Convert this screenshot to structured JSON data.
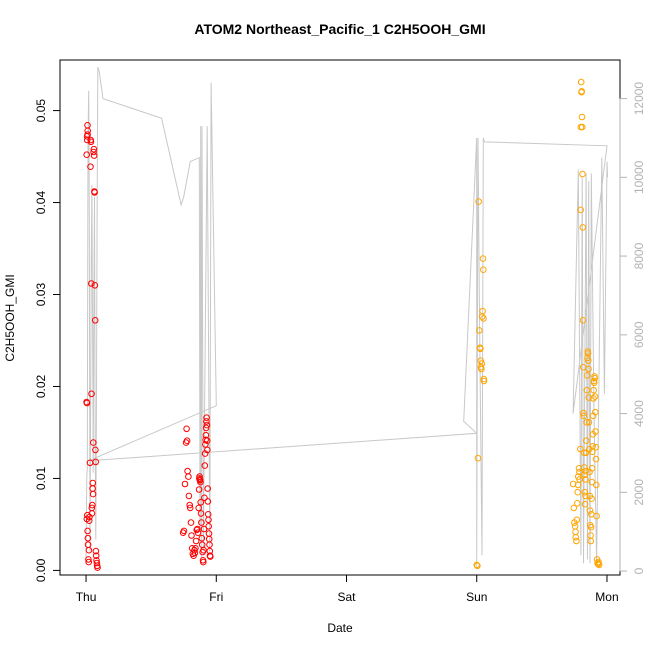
{
  "chart_data": {
    "type": "scatter",
    "title": "ATOM2 Northeast_Pacific_1 C2H5OOH_GMI",
    "xlabel": "Date",
    "ylabel": "C2H5OOH_GMI",
    "x_ticks": [
      {
        "day": 0,
        "label": "Thu"
      },
      {
        "day": 1,
        "label": "Fri"
      },
      {
        "day": 2,
        "label": "Sat"
      },
      {
        "day": 3,
        "label": "Sun"
      },
      {
        "day": 4,
        "label": "Mon"
      }
    ],
    "xlim": [
      -0.2,
      4.1
    ],
    "ylim": [
      -0.0005,
      0.0555
    ],
    "y_ticks": [
      0.0,
      0.01,
      0.02,
      0.03,
      0.04,
      0.05
    ],
    "y_tick_labels": [
      "0.00",
      "0.01",
      "0.02",
      "0.03",
      "0.04",
      "0.05"
    ],
    "y2lim": [
      -100,
      12980
    ],
    "y2_ticks": [
      0,
      2000,
      4000,
      6000,
      8000,
      10000,
      12000
    ],
    "y2_tick_labels": [
      "0",
      "2000",
      "4000",
      "6000",
      "8000",
      "10000",
      "12000"
    ],
    "grid": false,
    "colors": {
      "series_red": "#ff0000",
      "series_orange": "#ffa500",
      "altitude_line": "#c8c8c8"
    },
    "series": [
      {
        "color": "#ff0000",
        "points": [
          [
            0.005,
            0.0452
          ],
          [
            0.008,
            0.0472
          ],
          [
            0.011,
            0.0484
          ],
          [
            0.013,
            0.0478
          ],
          [
            0.009,
            0.0468
          ],
          [
            0.012,
            0.0474
          ],
          [
            0.004,
            0.0183
          ],
          [
            0.007,
            0.0182
          ],
          [
            0.006,
            0.0056
          ],
          [
            0.01,
            0.006
          ],
          [
            0.012,
            0.0043
          ],
          [
            0.014,
            0.0035
          ],
          [
            0.016,
            0.0028
          ],
          [
            0.018,
            0.0012
          ],
          [
            0.02,
            0.0009
          ],
          [
            0.022,
            0.0022
          ],
          [
            0.024,
            0.0054
          ],
          [
            0.026,
            0.0058
          ],
          [
            0.03,
            0.0117
          ],
          [
            0.034,
            0.0439
          ],
          [
            0.036,
            0.0468
          ],
          [
            0.038,
            0.0466
          ],
          [
            0.04,
            0.0312
          ],
          [
            0.042,
            0.0192
          ],
          [
            0.044,
            0.0068
          ],
          [
            0.046,
            0.0062
          ],
          [
            0.048,
            0.0071
          ],
          [
            0.05,
            0.0089
          ],
          [
            0.052,
            0.0095
          ],
          [
            0.054,
            0.0083
          ],
          [
            0.056,
            0.0139
          ],
          [
            0.058,
            0.0455
          ],
          [
            0.06,
            0.0458
          ],
          [
            0.062,
            0.0451
          ],
          [
            0.064,
            0.0412
          ],
          [
            0.066,
            0.0411
          ],
          [
            0.068,
            0.031
          ],
          [
            0.07,
            0.0272
          ],
          [
            0.072,
            0.0131
          ],
          [
            0.074,
            0.0118
          ],
          [
            0.076,
            0.0021
          ],
          [
            0.078,
            0.0016
          ],
          [
            0.08,
            0.0011
          ],
          [
            0.083,
            0.0008
          ],
          [
            0.086,
            0.0005
          ],
          [
            0.088,
            0.0003
          ],
          [
            0.745,
            0.0041
          ],
          [
            0.752,
            0.0043
          ],
          [
            0.76,
            0.0094
          ],
          [
            0.768,
            0.0139
          ],
          [
            0.772,
            0.0154
          ],
          [
            0.776,
            0.0141
          ],
          [
            0.78,
            0.0108
          ],
          [
            0.786,
            0.0102
          ],
          [
            0.79,
            0.0081
          ],
          [
            0.796,
            0.0071
          ],
          [
            0.8,
            0.0068
          ],
          [
            0.806,
            0.0052
          ],
          [
            0.81,
            0.0038
          ],
          [
            0.815,
            0.0024
          ],
          [
            0.82,
            0.0018
          ],
          [
            0.826,
            0.0016
          ],
          [
            0.832,
            0.0022
          ],
          [
            0.836,
            0.0019
          ],
          [
            0.84,
            0.0024
          ],
          [
            0.845,
            0.0032
          ],
          [
            0.85,
            0.0044
          ],
          [
            0.855,
            0.0045
          ],
          [
            0.86,
            0.0041
          ],
          [
            0.865,
            0.0068
          ],
          [
            0.868,
            0.0088
          ],
          [
            0.87,
            0.01
          ],
          [
            0.872,
            0.0102
          ],
          [
            0.874,
            0.0098
          ],
          [
            0.876,
            0.0099
          ],
          [
            0.878,
            0.0096
          ],
          [
            0.88,
            0.0074
          ],
          [
            0.883,
            0.0062
          ],
          [
            0.886,
            0.0052
          ],
          [
            0.889,
            0.0035
          ],
          [
            0.892,
            0.0028
          ],
          [
            0.895,
            0.002
          ],
          [
            0.898,
            0.0011
          ],
          [
            0.9,
            0.0009
          ],
          [
            0.903,
            0.0022
          ],
          [
            0.906,
            0.0045
          ],
          [
            0.909,
            0.0079
          ],
          [
            0.912,
            0.0114
          ],
          [
            0.914,
            0.0127
          ],
          [
            0.916,
            0.0137
          ],
          [
            0.918,
            0.0142
          ],
          [
            0.92,
            0.0147
          ],
          [
            0.922,
            0.0155
          ],
          [
            0.924,
            0.0162
          ],
          [
            0.926,
            0.0166
          ],
          [
            0.928,
            0.0158
          ],
          [
            0.93,
            0.0141
          ],
          [
            0.932,
            0.0131
          ],
          [
            0.934,
            0.0089
          ],
          [
            0.936,
            0.0075
          ],
          [
            0.938,
            0.0061
          ],
          [
            0.94,
            0.0055
          ],
          [
            0.942,
            0.0048
          ],
          [
            0.944,
            0.004
          ],
          [
            0.946,
            0.0034
          ],
          [
            0.948,
            0.0028
          ],
          [
            0.95,
            0.0021
          ],
          [
            0.952,
            0.0016
          ],
          [
            0.954,
            0.0015
          ]
        ]
      },
      {
        "color": "#ffa500",
        "points": [
          [
            3.0,
            0.0006
          ],
          [
            3.005,
            0.0005
          ],
          [
            3.01,
            0.0122
          ],
          [
            3.015,
            0.0401
          ],
          [
            3.02,
            0.0261
          ],
          [
            3.025,
            0.0242
          ],
          [
            3.028,
            0.0241
          ],
          [
            3.03,
            0.0228
          ],
          [
            3.033,
            0.0221
          ],
          [
            3.036,
            0.0219
          ],
          [
            3.039,
            0.0225
          ],
          [
            3.042,
            0.0276
          ],
          [
            3.045,
            0.0282
          ],
          [
            3.048,
            0.0339
          ],
          [
            3.05,
            0.0327
          ],
          [
            3.052,
            0.0274
          ],
          [
            3.054,
            0.0208
          ],
          [
            3.056,
            0.0206
          ],
          [
            3.74,
            0.0094
          ],
          [
            3.745,
            0.0068
          ],
          [
            3.75,
            0.0052
          ],
          [
            3.755,
            0.0048
          ],
          [
            3.758,
            0.0042
          ],
          [
            3.76,
            0.0036
          ],
          [
            3.765,
            0.0032
          ],
          [
            3.768,
            0.0055
          ],
          [
            3.772,
            0.0073
          ],
          [
            3.775,
            0.0085
          ],
          [
            3.778,
            0.0093
          ],
          [
            3.78,
            0.0102
          ],
          [
            3.785,
            0.0111
          ],
          [
            3.788,
            0.0107
          ],
          [
            3.79,
            0.0099
          ],
          [
            3.795,
            0.0132
          ],
          [
            3.798,
            0.0392
          ],
          [
            3.8,
            0.0482
          ],
          [
            3.802,
            0.0531
          ],
          [
            3.804,
            0.052
          ],
          [
            3.806,
            0.0521
          ],
          [
            3.808,
            0.0493
          ],
          [
            3.81,
            0.0482
          ],
          [
            3.812,
            0.0431
          ],
          [
            3.814,
            0.0373
          ],
          [
            3.816,
            0.0272
          ],
          [
            3.818,
            0.0221
          ],
          [
            3.82,
            0.0171
          ],
          [
            3.822,
            0.0168
          ],
          [
            3.824,
            0.0128
          ],
          [
            3.826,
            0.0112
          ],
          [
            3.828,
            0.0104
          ],
          [
            3.83,
            0.0085
          ],
          [
            3.832,
            0.0072
          ],
          [
            3.834,
            0.0081
          ],
          [
            3.836,
            0.0099
          ],
          [
            3.838,
            0.0108
          ],
          [
            3.84,
            0.0128
          ],
          [
            3.842,
            0.0141
          ],
          [
            3.844,
            0.0161
          ],
          [
            3.846,
            0.0196
          ],
          [
            3.848,
            0.0212
          ],
          [
            3.85,
            0.0231
          ],
          [
            3.852,
            0.0238
          ],
          [
            3.854,
            0.0236
          ],
          [
            3.856,
            0.0228
          ],
          [
            3.858,
            0.0219
          ],
          [
            3.86,
            0.0188
          ],
          [
            3.862,
            0.0161
          ],
          [
            3.864,
            0.0132
          ],
          [
            3.866,
            0.0107
          ],
          [
            3.868,
            0.0081
          ],
          [
            3.87,
            0.0065
          ],
          [
            3.872,
            0.0049
          ],
          [
            3.874,
            0.0038
          ],
          [
            3.876,
            0.0032
          ],
          [
            3.878,
            0.0047
          ],
          [
            3.88,
            0.0061
          ],
          [
            3.882,
            0.0078
          ],
          [
            3.884,
            0.0096
          ],
          [
            3.886,
            0.0111
          ],
          [
            3.888,
            0.0129
          ],
          [
            3.89,
            0.0135
          ],
          [
            3.892,
            0.0148
          ],
          [
            3.894,
            0.0168
          ],
          [
            3.896,
            0.0187
          ],
          [
            3.898,
            0.0196
          ],
          [
            3.9,
            0.0206
          ],
          [
            3.902,
            0.0204
          ],
          [
            3.904,
            0.0211
          ],
          [
            3.906,
            0.0209
          ],
          [
            3.908,
            0.0189
          ],
          [
            3.91,
            0.0172
          ],
          [
            3.912,
            0.0151
          ],
          [
            3.914,
            0.0134
          ],
          [
            3.916,
            0.0121
          ],
          [
            3.918,
            0.0093
          ],
          [
            3.92,
            0.0059
          ],
          [
            3.924,
            0.0012
          ],
          [
            3.928,
            0.0008
          ],
          [
            3.932,
            0.0007
          ],
          [
            3.936,
            0.0009
          ],
          [
            3.94,
            0.0006
          ]
        ]
      }
    ],
    "altitude_line": [
      [
        0.0,
        300
      ],
      [
        0.006,
        2400
      ],
      [
        0.01,
        2600
      ],
      [
        0.015,
        11000
      ],
      [
        0.02,
        12200
      ],
      [
        0.025,
        9000
      ],
      [
        0.03,
        500
      ],
      [
        0.035,
        4000
      ],
      [
        0.04,
        8000
      ],
      [
        0.045,
        9800
      ],
      [
        0.05,
        6000
      ],
      [
        0.055,
        2500
      ],
      [
        0.06,
        7000
      ],
      [
        0.065,
        9500
      ],
      [
        0.07,
        3000
      ],
      [
        0.075,
        800
      ],
      [
        0.08,
        4500
      ],
      [
        0.085,
        9000
      ],
      [
        0.09,
        12800
      ],
      [
        0.1,
        12700
      ],
      [
        0.13,
        12000
      ],
      [
        0.58,
        11500
      ],
      [
        0.73,
        9300
      ],
      [
        0.75,
        9500
      ],
      [
        0.8,
        10400
      ],
      [
        0.87,
        10500
      ],
      [
        0.875,
        1000
      ],
      [
        0.88,
        11300
      ],
      [
        0.885,
        300
      ],
      [
        0.89,
        11300
      ],
      [
        0.9,
        500
      ],
      [
        0.93,
        11300
      ],
      [
        0.95,
        500
      ],
      [
        0.96,
        12400
      ],
      [
        1.0,
        4200
      ],
      [
        0.02,
        2800
      ],
      [
        3.0,
        3500
      ],
      [
        2.9,
        3800
      ],
      [
        3.0,
        11000
      ],
      [
        3.0,
        100
      ],
      [
        3.01,
        11000
      ],
      [
        3.02,
        7000
      ],
      [
        3.04,
        400
      ],
      [
        3.05,
        11000
      ],
      [
        3.06,
        10900
      ],
      [
        4.0,
        10800
      ],
      [
        3.74,
        4000
      ],
      [
        3.78,
        10200
      ],
      [
        3.8,
        400
      ],
      [
        3.81,
        10000
      ],
      [
        3.82,
        200
      ],
      [
        3.84,
        10100
      ],
      [
        3.85,
        300
      ],
      [
        3.86,
        9900
      ],
      [
        3.87,
        200
      ],
      [
        3.88,
        10100
      ],
      [
        3.9,
        4000
      ],
      [
        3.92,
        200
      ],
      [
        3.96,
        10500
      ],
      [
        3.98,
        4500
      ],
      [
        4.0,
        10400
      ],
      [
        4.005,
        10000
      ]
    ]
  }
}
